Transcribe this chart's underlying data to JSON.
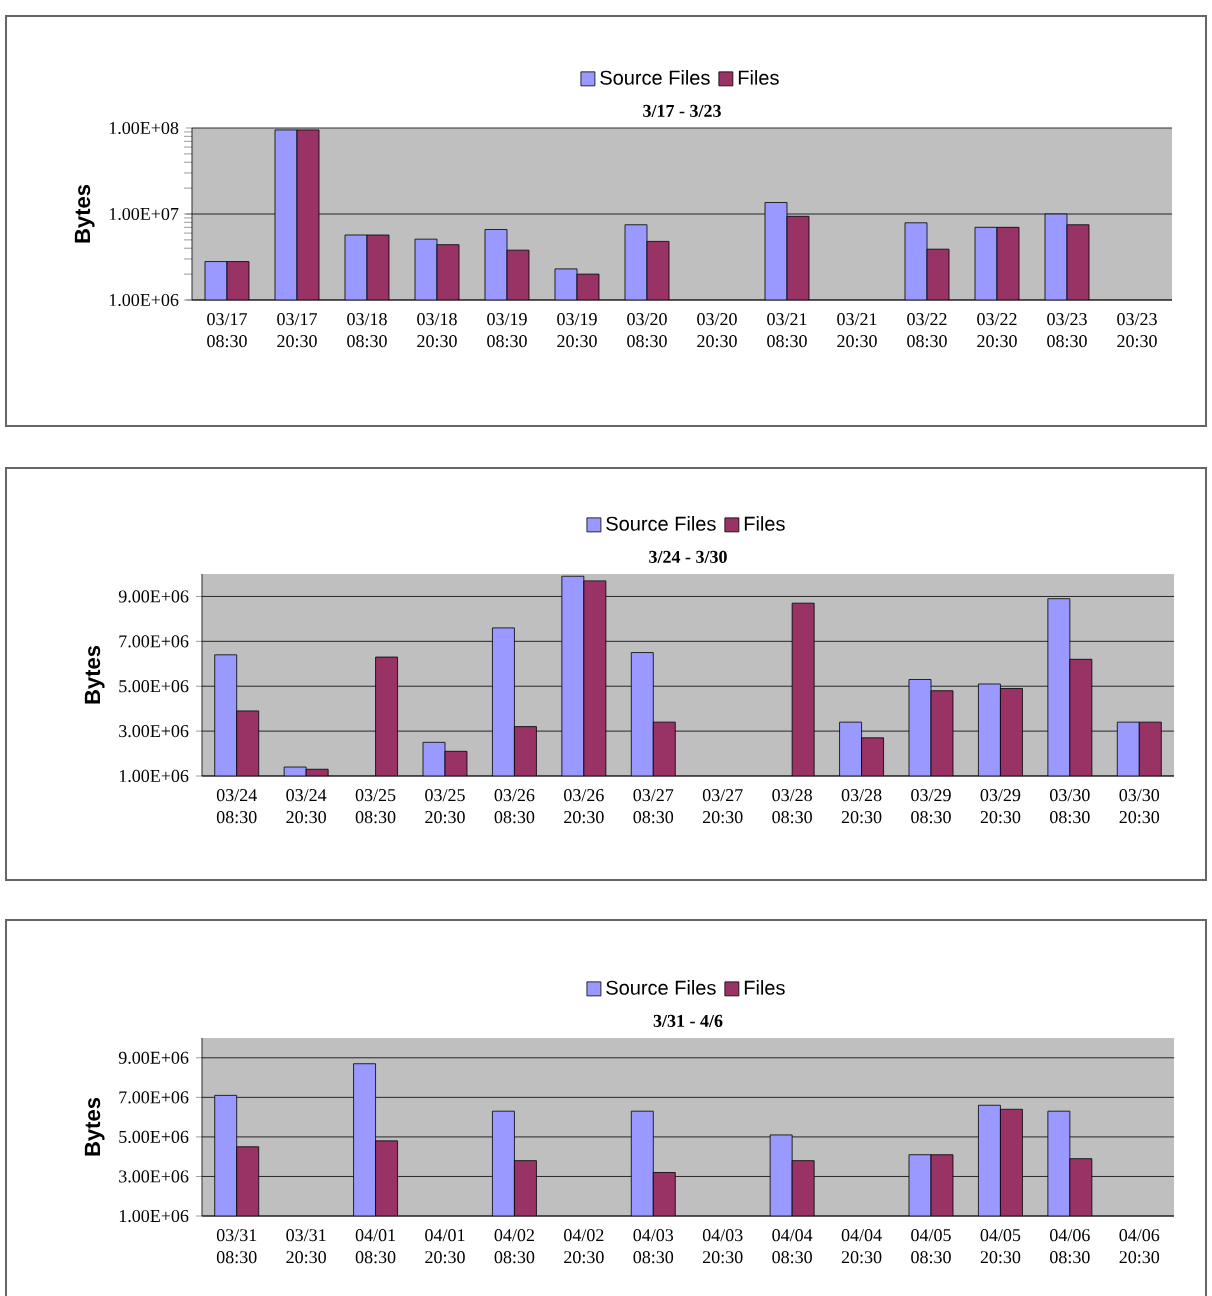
{
  "chart_data": [
    {
      "type": "bar",
      "title": "3/17 - 3/23",
      "ylabel": "Bytes",
      "log": true,
      "grid": "y",
      "legend": "top",
      "categories": [
        "03/17 08:30",
        "03/17 20:30",
        "03/18 08:30",
        "03/18 20:30",
        "03/19 08:30",
        "03/19 20:30",
        "03/20 08:30",
        "03/20 20:30",
        "03/21 08:30",
        "03/21 20:30",
        "03/22 08:30",
        "03/22 20:30",
        "03/23 08:30",
        "03/23 20:30"
      ],
      "series": [
        {
          "name": "Source Files",
          "color": "#9999ff",
          "values": [
            2800000,
            95000000,
            5700000,
            5100000,
            6600000,
            2300000,
            7500000,
            null,
            13600000,
            null,
            7900000,
            7000000,
            10000000,
            null
          ]
        },
        {
          "name": "Files",
          "color": "#993366",
          "values": [
            2800000,
            95000000,
            5700000,
            4400000,
            3800000,
            2000000,
            4800000,
            null,
            9400000,
            null,
            3900000,
            7000000,
            7500000,
            null
          ]
        }
      ],
      "ylim": [
        1000000,
        100000000
      ],
      "yticks": [
        {
          "value": 1000000,
          "label": "1.00E+06"
        },
        {
          "value": 10000000,
          "label": "1.00E+07"
        },
        {
          "value": 100000000,
          "label": "1.00E+08"
        }
      ]
    },
    {
      "type": "bar",
      "title": "3/24 - 3/30",
      "ylabel": "Bytes",
      "grid": "y",
      "legend": "top",
      "categories": [
        "03/24 08:30",
        "03/24 20:30",
        "03/25 08:30",
        "03/25 20:30",
        "03/26 08:30",
        "03/26 20:30",
        "03/27 08:30",
        "03/27 20:30",
        "03/28 08:30",
        "03/28 20:30",
        "03/29 08:30",
        "03/29 20:30",
        "03/30 08:30",
        "03/30 20:30"
      ],
      "series": [
        {
          "name": "Source Files",
          "color": "#9999ff",
          "values": [
            6400000,
            1400000,
            null,
            2500000,
            7600000,
            9900000,
            6500000,
            null,
            null,
            3400000,
            5300000,
            5100000,
            8900000,
            3400000
          ]
        },
        {
          "name": "Files",
          "color": "#993366",
          "values": [
            3900000,
            1300000,
            6300000,
            2100000,
            3200000,
            9700000,
            3400000,
            null,
            8700000,
            2700000,
            4800000,
            4900000,
            6200000,
            3400000
          ]
        }
      ],
      "ylim": [
        1000000,
        10000000
      ],
      "yticks": [
        {
          "value": 1000000,
          "label": "1.00E+06"
        },
        {
          "value": 3000000,
          "label": "3.00E+06"
        },
        {
          "value": 5000000,
          "label": "5.00E+06"
        },
        {
          "value": 7000000,
          "label": "7.00E+06"
        },
        {
          "value": 9000000,
          "label": "9.00E+06"
        }
      ]
    },
    {
      "type": "bar",
      "title": "3/31 - 4/6",
      "ylabel": "Bytes",
      "grid": "y",
      "legend": "top",
      "categories": [
        "03/31 08:30",
        "03/31 20:30",
        "04/01 08:30",
        "04/01 20:30",
        "04/02 08:30",
        "04/02 20:30",
        "04/03 08:30",
        "04/03 20:30",
        "04/04 08:30",
        "04/04 20:30",
        "04/05 08:30",
        "04/05 20:30",
        "04/06 08:30",
        "04/06 20:30"
      ],
      "series": [
        {
          "name": "Source Files",
          "color": "#9999ff",
          "values": [
            7100000,
            null,
            8700000,
            null,
            6300000,
            null,
            6300000,
            null,
            5100000,
            null,
            4100000,
            6600000,
            6300000,
            null
          ]
        },
        {
          "name": "Files",
          "color": "#993366",
          "values": [
            4500000,
            null,
            4800000,
            null,
            3800000,
            null,
            3200000,
            null,
            3800000,
            null,
            4100000,
            6400000,
            3900000,
            null
          ]
        }
      ],
      "ylim": [
        1000000,
        10000000
      ],
      "yticks": [
        {
          "value": 1000000,
          "label": "1.00E+06"
        },
        {
          "value": 3000000,
          "label": "3.00E+06"
        },
        {
          "value": 5000000,
          "label": "5.00E+06"
        },
        {
          "value": 7000000,
          "label": "7.00E+06"
        },
        {
          "value": 9000000,
          "label": "9.00E+06"
        }
      ]
    }
  ]
}
